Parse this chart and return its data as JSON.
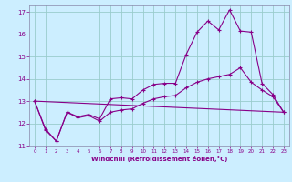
{
  "xlabel": "Windchill (Refroidissement éolien,°C)",
  "bg_color": "#cceeff",
  "grid_color": "#99cccc",
  "line_color": "#880088",
  "spine_color": "#8888aa",
  "xlim": [
    -0.5,
    23.5
  ],
  "ylim": [
    11,
    17.3
  ],
  "yticks": [
    11,
    12,
    13,
    14,
    15,
    16,
    17
  ],
  "xticks": [
    0,
    1,
    2,
    3,
    4,
    5,
    6,
    7,
    8,
    9,
    10,
    11,
    12,
    13,
    14,
    15,
    16,
    17,
    18,
    19,
    20,
    21,
    22,
    23
  ],
  "line1_x": [
    0,
    1,
    2,
    3,
    4,
    5,
    6,
    7,
    8,
    9,
    10,
    11,
    12,
    13,
    14,
    15,
    16,
    17,
    18,
    19,
    20,
    21,
    22,
    23
  ],
  "line1_y": [
    13.0,
    11.7,
    11.2,
    12.5,
    12.3,
    12.4,
    12.2,
    13.1,
    13.15,
    13.1,
    13.5,
    13.75,
    13.8,
    13.8,
    15.1,
    16.1,
    16.6,
    16.2,
    17.1,
    16.15,
    16.1,
    13.8,
    13.3,
    12.5
  ],
  "line2_x": [
    0,
    1,
    2,
    3,
    4,
    5,
    6,
    7,
    8,
    9,
    10,
    11,
    12,
    13,
    14,
    15,
    16,
    17,
    18,
    19,
    20,
    21,
    22,
    23
  ],
  "line2_y": [
    13.0,
    11.75,
    11.2,
    12.5,
    12.25,
    12.35,
    12.1,
    12.5,
    12.6,
    12.65,
    12.9,
    13.1,
    13.2,
    13.25,
    13.6,
    13.85,
    14.0,
    14.1,
    14.2,
    14.5,
    13.85,
    13.5,
    13.2,
    12.5
  ],
  "line3_x": [
    0,
    23
  ],
  "line3_y": [
    13.0,
    12.5
  ]
}
